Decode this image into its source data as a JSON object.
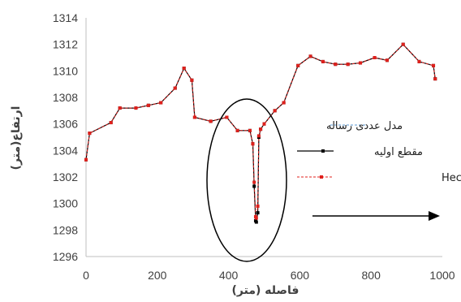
{
  "chart_data": {
    "type": "line",
    "xlabel": "فاصله (متر)",
    "ylabel": "ارتفاع(متر)",
    "xlim": [
      0,
      1000
    ],
    "ylim": [
      1296,
      1314
    ],
    "x_ticks": [
      0,
      200,
      400,
      600,
      800,
      1000
    ],
    "y_ticks": [
      1296,
      1298,
      1300,
      1302,
      1304,
      1306,
      1308,
      1310,
      1312,
      1314
    ],
    "grid": false,
    "legend_position": "right",
    "annotations": [
      "ellipse around the sharp dip near x = 470",
      "arrow pointing right"
    ],
    "series": [
      {
        "name": "مدل عددی رساله",
        "color": "#5b9bd5",
        "style": "dashed",
        "x": [
          0,
          10,
          70,
          95,
          140,
          175,
          210,
          250,
          275,
          297,
          305,
          350,
          395,
          425,
          460,
          468,
          472,
          476,
          478,
          482,
          485,
          490,
          500,
          530,
          555,
          595,
          630,
          665,
          700,
          735,
          770,
          810,
          845,
          890,
          935,
          975,
          980
        ],
        "y": [
          1303.3,
          1305.3,
          1306.1,
          1307.2,
          1307.2,
          1307.4,
          1307.6,
          1308.7,
          1310.2,
          1309.3,
          1306.5,
          1306.2,
          1306.5,
          1305.5,
          1305.5,
          1304.5,
          1301.5,
          1298.8,
          1298.7,
          1299.5,
          1305.0,
          1305.6,
          1306.0,
          1307.0,
          1307.6,
          1310.4,
          1311.1,
          1310.7,
          1310.5,
          1310.5,
          1310.6,
          1311.0,
          1310.8,
          1312.0,
          1310.7,
          1310.4,
          1309.4
        ]
      },
      {
        "name": "مقطع اولیه",
        "color": "#000000",
        "style": "solid",
        "x": [
          0,
          10,
          70,
          95,
          140,
          175,
          210,
          250,
          275,
          297,
          305,
          350,
          395,
          425,
          460,
          468,
          472,
          476,
          478,
          482,
          485,
          490,
          500,
          530,
          555,
          595,
          630,
          665,
          700,
          735,
          770,
          810,
          845,
          890,
          935,
          975,
          980
        ],
        "y": [
          1303.3,
          1305.3,
          1306.1,
          1307.2,
          1307.2,
          1307.4,
          1307.6,
          1308.7,
          1310.2,
          1309.3,
          1306.5,
          1306.2,
          1306.5,
          1305.5,
          1305.5,
          1304.5,
          1301.3,
          1298.7,
          1298.6,
          1299.3,
          1305.0,
          1305.6,
          1306.0,
          1307.0,
          1307.6,
          1310.4,
          1311.1,
          1310.7,
          1310.5,
          1310.5,
          1310.6,
          1311.0,
          1310.8,
          1312.0,
          1310.7,
          1310.4,
          1309.4
        ]
      },
      {
        "name": "مدل Hec-Ras",
        "color": "#e0201c",
        "style": "dashed",
        "x": [
          0,
          10,
          70,
          95,
          140,
          175,
          210,
          250,
          275,
          297,
          305,
          350,
          395,
          425,
          460,
          468,
          472,
          476,
          478,
          482,
          485,
          490,
          500,
          530,
          555,
          595,
          630,
          665,
          700,
          735,
          770,
          810,
          845,
          890,
          935,
          975,
          980
        ],
        "y": [
          1303.3,
          1305.3,
          1306.1,
          1307.2,
          1307.2,
          1307.4,
          1307.6,
          1308.7,
          1310.2,
          1309.3,
          1306.5,
          1306.2,
          1306.5,
          1305.5,
          1305.5,
          1304.5,
          1301.6,
          1299.0,
          1298.9,
          1299.8,
          1305.1,
          1305.6,
          1306.0,
          1307.0,
          1307.6,
          1310.4,
          1311.1,
          1310.7,
          1310.5,
          1310.5,
          1310.6,
          1311.0,
          1310.8,
          1312.0,
          1310.7,
          1310.4,
          1309.4
        ]
      }
    ]
  }
}
